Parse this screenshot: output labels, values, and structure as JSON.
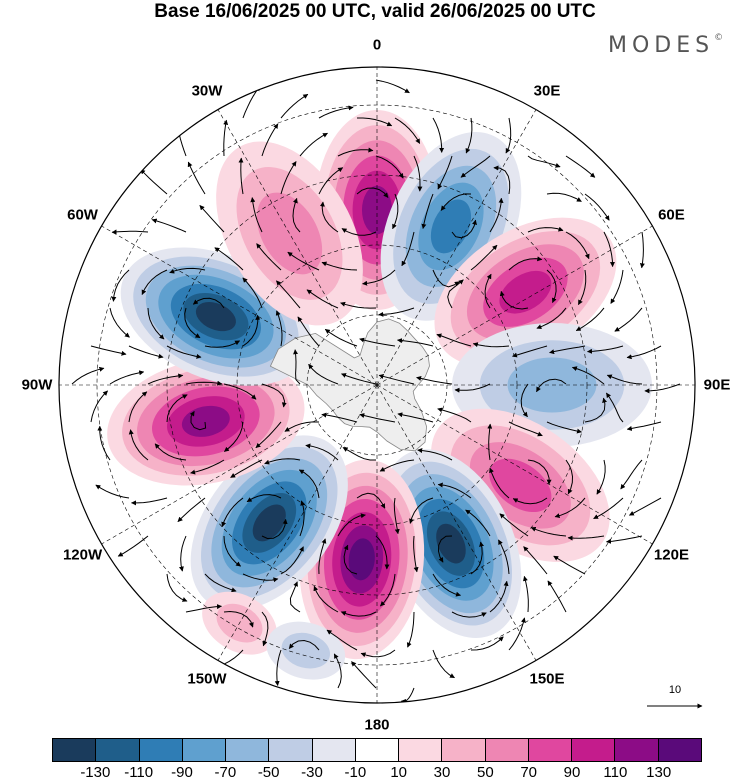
{
  "header": {
    "title": "Base 16/06/2025 00 UTC, valid 26/06/2025 00 UTC",
    "brand": "MODES",
    "brand_mark": "©"
  },
  "map": {
    "projection": "south-polar-stereographic",
    "longitude_labels": [
      {
        "id": "lon-0",
        "text": "0"
      },
      {
        "id": "lon-30e",
        "text": "30E"
      },
      {
        "id": "lon-60e",
        "text": "60E"
      },
      {
        "id": "lon-90e",
        "text": "90E"
      },
      {
        "id": "lon-120e",
        "text": "120E"
      },
      {
        "id": "lon-150e",
        "text": "150E"
      },
      {
        "id": "lon-180",
        "text": "180"
      },
      {
        "id": "lon-150w",
        "text": "150W"
      },
      {
        "id": "lon-120w",
        "text": "120W"
      },
      {
        "id": "lon-90w",
        "text": "90W"
      },
      {
        "id": "lon-60w",
        "text": "60W"
      },
      {
        "id": "lon-30w",
        "text": "30W"
      }
    ],
    "anomaly_centers": [
      {
        "name": "positive-0",
        "sign": "positive",
        "lon": 0,
        "strength": 120
      },
      {
        "name": "negative-25e",
        "sign": "negative",
        "lon": 25,
        "strength": 100
      },
      {
        "name": "positive-55e",
        "sign": "positive",
        "lon": 58,
        "strength": 90
      },
      {
        "name": "negative-90e",
        "sign": "negative",
        "lon": 90,
        "strength": 55
      },
      {
        "name": "positive-125e",
        "sign": "positive",
        "lon": 125,
        "strength": 80
      },
      {
        "name": "negative-155e",
        "sign": "negative",
        "lon": 155,
        "strength": 135
      },
      {
        "name": "positive-180",
        "sign": "positive",
        "lon": 185,
        "strength": 135
      },
      {
        "name": "negative-140w",
        "sign": "negative",
        "lon": 218,
        "strength": 135
      },
      {
        "name": "positive-100w",
        "sign": "positive",
        "lon": 258,
        "strength": 125
      },
      {
        "name": "negative-70w",
        "sign": "negative",
        "lon": 293,
        "strength": 130
      },
      {
        "name": "positive-40w",
        "sign": "positive",
        "lon": 330,
        "strength": 50
      },
      {
        "name": "positive-150w",
        "sign": "positive",
        "lon": 210,
        "strength": 40
      },
      {
        "name": "negative-170w",
        "sign": "negative",
        "lon": 195,
        "strength": 40
      }
    ],
    "colors": {
      "antarctica": "#eeeeee",
      "coast": "#888888",
      "grid": "#000000",
      "arrow": "#000000"
    }
  },
  "colorbar": {
    "colors": [
      "#1a3b5c",
      "#1f5e8a",
      "#2f7db5",
      "#5fa0cf",
      "#8fb7dc",
      "#bfcde5",
      "#e4e6f0",
      "#ffffff",
      "#fbd9e2",
      "#f6b2c8",
      "#ee86b3",
      "#e0479f",
      "#c41c8c",
      "#8c0c86",
      "#5a0a7a"
    ],
    "ticks": [
      "-130",
      "-110",
      "-90",
      "-70",
      "-50",
      "-30",
      "-10",
      "10",
      "30",
      "50",
      "70",
      "90",
      "110",
      "130"
    ]
  },
  "reference_vector": {
    "label": "10"
  }
}
